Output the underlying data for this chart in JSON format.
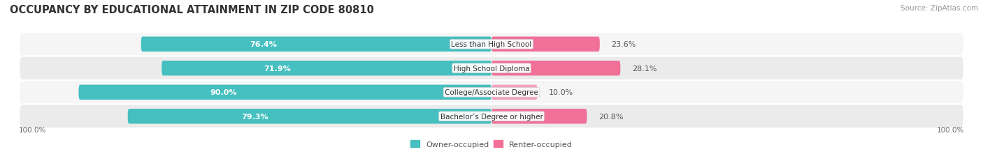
{
  "title": "OCCUPANCY BY EDUCATIONAL ATTAINMENT IN ZIP CODE 80810",
  "source": "Source: ZipAtlas.com",
  "categories": [
    "Less than High School",
    "High School Diploma",
    "College/Associate Degree",
    "Bachelor’s Degree or higher"
  ],
  "owner_values": [
    76.4,
    71.9,
    90.0,
    79.3
  ],
  "renter_values": [
    23.6,
    28.1,
    10.0,
    20.8
  ],
  "owner_color": "#45BFBF",
  "renter_color_dark": "#F07098",
  "renter_color_light": "#F5A0C0",
  "row_bg_color_light": "#F5F5F5",
  "row_bg_color_dark": "#EBEBEB",
  "title_fontsize": 10.5,
  "label_fontsize": 8.0,
  "value_fontsize": 8.0,
  "tick_fontsize": 7.5,
  "source_fontsize": 7.5,
  "legend_fontsize": 8.0,
  "x_left_label": "100.0%",
  "x_right_label": "100.0%",
  "bar_height": 0.62,
  "figsize": [
    14.06,
    2.32
  ],
  "dpi": 100
}
